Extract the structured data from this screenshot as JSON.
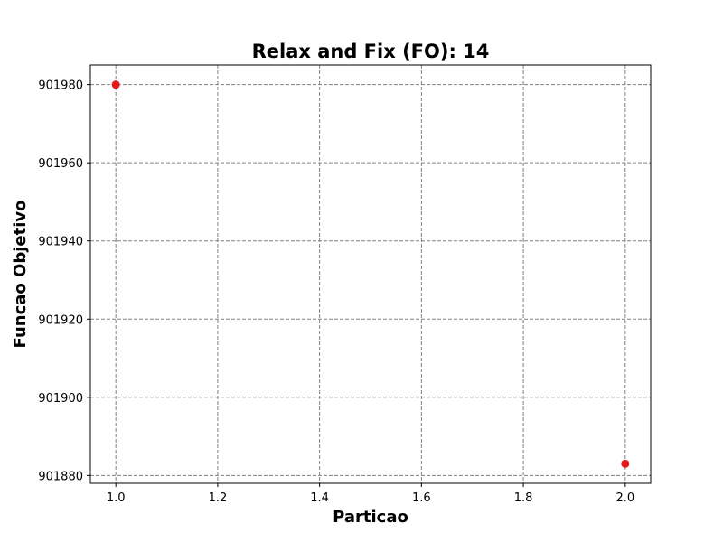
{
  "chart_data": {
    "type": "scatter",
    "title": "Relax and Fix (FO): 14",
    "xlabel": "Particao",
    "ylabel": "Funcao Objetivo",
    "xlim": [
      0.95,
      2.05
    ],
    "ylim": [
      901878,
      901985
    ],
    "x_ticks": [
      1.0,
      1.2,
      1.4,
      1.6,
      1.8,
      2.0
    ],
    "x_tick_labels": [
      "1.0",
      "1.2",
      "1.4",
      "1.6",
      "1.8",
      "2.0"
    ],
    "y_ticks": [
      901880,
      901900,
      901920,
      901940,
      901960,
      901980
    ],
    "y_tick_labels": [
      "901880",
      "901900",
      "901920",
      "901940",
      "901960",
      "901980"
    ],
    "grid": true,
    "series": [
      {
        "x": [
          1.0,
          2.0
        ],
        "y": [
          901980,
          901883
        ],
        "color": "#e31a1c"
      }
    ]
  }
}
